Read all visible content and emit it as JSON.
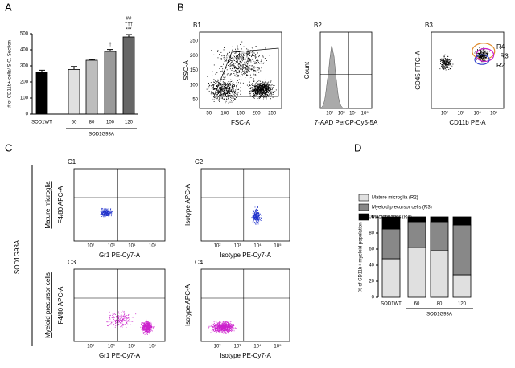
{
  "panel_letters": [
    "A",
    "B",
    "C",
    "D"
  ],
  "chart_data": [
    {
      "type": "bar",
      "y_label": "# of CD11b+ cells/ S.C. Section",
      "categories": [
        "SOD1WT",
        "60",
        "80",
        "100",
        "120"
      ],
      "values": [
        258,
        278,
        335,
        390,
        480
      ],
      "errors": [
        15,
        18,
        5,
        12,
        15
      ],
      "colors": [
        "#000000",
        "#e0e0e0",
        "#bdbdbd",
        "#999999",
        "#666666"
      ],
      "group_label": "SOD1G93A",
      "annotations": {
        "100": [
          "†"
        ],
        "120": [
          "##",
          "†††",
          "***"
        ]
      },
      "ylim": [
        0,
        500
      ],
      "yticks": [
        0,
        100,
        200,
        300,
        400,
        500
      ]
    },
    {
      "type": "stacked-bar",
      "y_label": "% of CD11b+ myeloid population",
      "categories": [
        "SOD1WT",
        "60",
        "80",
        "120"
      ],
      "group_label": "SOD1G93A",
      "series": [
        {
          "name": "Mature microglia (R2)",
          "color": "#e0e0e0",
          "values": [
            48,
            62,
            58,
            28
          ]
        },
        {
          "name": "Myeloid precursor cells (R3)",
          "color": "#888888",
          "values": [
            37,
            32,
            36,
            62
          ]
        },
        {
          "name": "Macrophages (R4)",
          "color": "#000000",
          "values": [
            15,
            6,
            6,
            10
          ]
        }
      ],
      "ylim": [
        0,
        100
      ],
      "yticks": [
        0,
        20,
        40,
        60,
        80,
        100
      ]
    }
  ],
  "log_ticks": [
    "10²",
    "10³",
    "10⁴",
    "10⁵"
  ],
  "flow": [
    {
      "label": "B1",
      "x_label": "FSC-A",
      "y_label": "SSC-A",
      "gates": [
        "R1"
      ],
      "x_ticks": [
        "50",
        "100",
        "150",
        "200",
        "250"
      ],
      "y_ticks": [
        "50",
        "100",
        "150",
        "200",
        "250"
      ],
      "color": "#000000"
    },
    {
      "label": "B2",
      "x_label": "7-AAD PerCP-Cy5-5A",
      "y_label": "Count",
      "gates": [],
      "color": "#999999"
    },
    {
      "label": "B3",
      "x_label": "CD11b PE-A",
      "y_label": "CD45 FITC-A",
      "gates": [
        "R4",
        "R3",
        "R2"
      ],
      "color": "#000000"
    },
    {
      "label": "C1",
      "x_label": "Gr1 PE-Cy7-A",
      "y_label": "F4/80 APC-A",
      "gates": [],
      "color": "#2233cc"
    },
    {
      "label": "C2",
      "x_label": "Isotype PE-Cy7-A",
      "y_label": "Isotype APC-A",
      "gates": [],
      "color": "#2233cc"
    },
    {
      "label": "C3",
      "x_label": "Gr1 PE-Cy7-A",
      "y_label": "F4/80 APC-A",
      "gates": [],
      "color": "#cc22cc"
    },
    {
      "label": "C4",
      "x_label": "Isotype PE-Cy7-A",
      "y_label": "Isotype APC-A",
      "gates": [],
      "color": "#cc22cc"
    }
  ],
  "row_labels": [
    "Mature microglia",
    "Myeloid precursor cells"
  ],
  "group_label": "SOD1G93A"
}
